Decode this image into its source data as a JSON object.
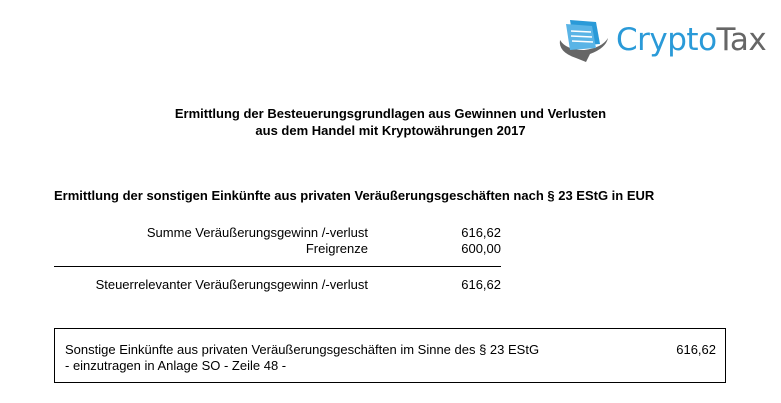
{
  "logo": {
    "text_a": "Crypto",
    "text_b": "Tax",
    "colors": {
      "blue": "#2a9ad8",
      "gray": "#666666"
    }
  },
  "title": {
    "line1": "Ermittlung der Besteuerungsgrundlagen aus Gewinnen und Verlusten",
    "line2": "aus dem Handel mit Kryptowährungen 2017"
  },
  "section_heading": "Ermittlung der sonstigen Einkünfte aus privaten Veräußerungsgeschäften nach § 23 EStG in EUR",
  "rows": [
    {
      "label": "Summe Veräußerungsgewinn /-verlust",
      "value": "616,62"
    },
    {
      "label": "Freigrenze",
      "value": "600,00"
    },
    {
      "label": "Steuerrelevanter Veräußerungsgewinn /-verlust",
      "value": "616,62"
    }
  ],
  "summary": {
    "line1": "Sonstige Einkünfte aus privaten Veräußerungsgeschäften im Sinne des § 23 EStG",
    "line2": "- einzutragen in Anlage SO - Zeile 48 -",
    "value": "616,62"
  }
}
